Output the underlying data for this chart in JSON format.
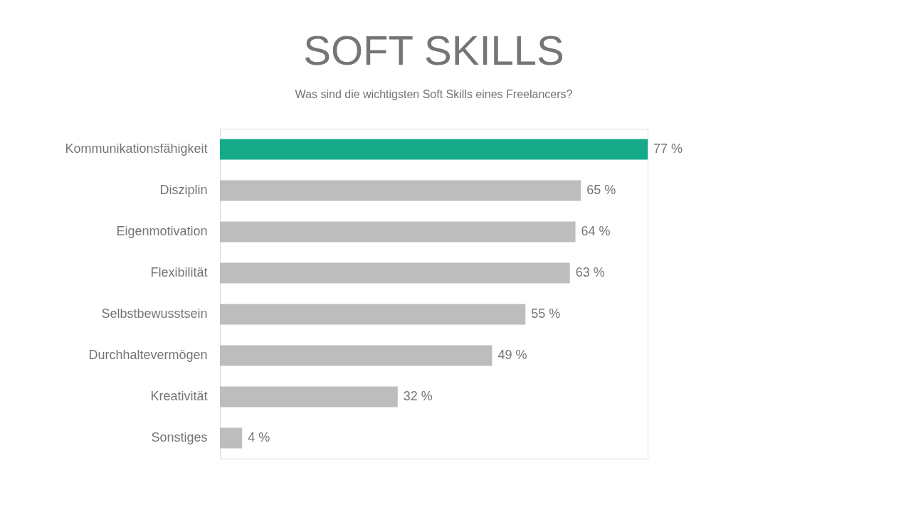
{
  "chart_data": {
    "type": "bar",
    "orientation": "horizontal",
    "title": "SOFT SKILLS",
    "subtitle": "Was sind die wichtigsten Soft Skills eines Freelancers?",
    "categories": [
      "Kommunikationsfähigkeit",
      "Disziplin",
      "Eigenmotivation",
      "Flexibilität",
      "Selbstbewusstsein",
      "Durchhaltevermögen",
      "Kreativität",
      "Sonstiges"
    ],
    "values": [
      77,
      65,
      64,
      63,
      55,
      49,
      32,
      4
    ],
    "colors": [
      "#16ab88",
      "#bdbdbd",
      "#bdbdbd",
      "#bdbdbd",
      "#bdbdbd",
      "#bdbdbd",
      "#bdbdbd",
      "#bdbdbd"
    ],
    "value_labels": [
      "77 %",
      "65 %",
      "64 %",
      "63 %",
      "55 %",
      "49 %",
      "32 %",
      "4 %"
    ],
    "grid": false
  }
}
